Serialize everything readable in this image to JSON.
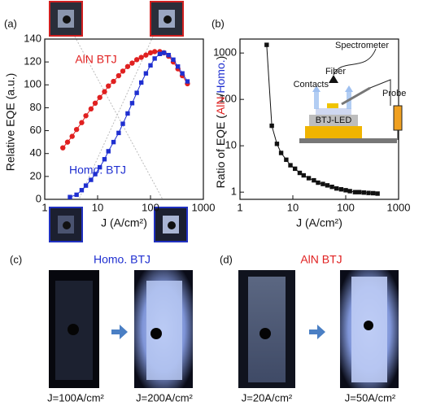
{
  "chart_data": [
    {
      "type": "line",
      "label": "(a)",
      "xlabel": "J (A/cm²)",
      "ylabel": "Relative EQE (a.u.)",
      "xscale": "log",
      "xlim": [
        1,
        1000
      ],
      "xticks": [
        1,
        10,
        100,
        1000
      ],
      "ylim": [
        0,
        140
      ],
      "yticks": [
        0,
        20,
        40,
        60,
        80,
        100,
        120,
        140
      ],
      "series": [
        {
          "name": "AlN BTJ",
          "color": "#e02020",
          "marker": "circle",
          "x": [
            2.2,
            2.7,
            3.3,
            4,
            5,
            6,
            7.5,
            9,
            11,
            13.5,
            16,
            20,
            25,
            30,
            37,
            45,
            55,
            67,
            82,
            100,
            120,
            150,
            180,
            220,
            270,
            330,
            400,
            500
          ],
          "values": [
            45,
            50,
            55,
            61,
            67,
            73,
            79,
            84,
            89,
            94,
            99,
            103,
            108,
            112,
            116,
            119,
            122,
            124,
            126,
            128,
            129,
            129,
            128,
            125,
            120,
            114,
            108,
            101
          ]
        },
        {
          "name": "Homo. BTJ",
          "color": "#1f2fd0",
          "marker": "square",
          "x": [
            3,
            4,
            5,
            6,
            7.5,
            9,
            11,
            13.5,
            16,
            20,
            25,
            30,
            37,
            45,
            55,
            67,
            82,
            100,
            120,
            150,
            180,
            220,
            270,
            330,
            400,
            500
          ],
          "values": [
            2,
            4,
            8,
            12,
            17,
            22,
            28,
            35,
            42,
            50,
            58,
            66,
            75,
            84,
            93,
            102,
            110,
            117,
            123,
            127,
            128,
            126,
            122,
            116,
            110,
            103
          ]
        }
      ]
    },
    {
      "type": "line",
      "label": "(b)",
      "xlabel": "J (A/cm²)",
      "ylabel_parts": [
        "Ratio of EQE (",
        "AlN",
        "/",
        "Homo.",
        ")"
      ],
      "ylabel_colors": [
        "#111111",
        "#e02020",
        "#111111",
        "#1f2fd0",
        "#111111"
      ],
      "xscale": "log",
      "xlim": [
        1,
        1000
      ],
      "xticks": [
        1,
        10,
        100,
        1000
      ],
      "yscale": "log",
      "ylim": [
        0.7,
        2000
      ],
      "yticks": [
        1,
        10,
        100,
        1000
      ],
      "color": "#111111",
      "marker": "square",
      "x": [
        3.2,
        4,
        5,
        6,
        7.5,
        9,
        11,
        13.5,
        16,
        20,
        25,
        30,
        37,
        45,
        55,
        67,
        82,
        100,
        120,
        150,
        180,
        220,
        270,
        330,
        400
      ],
      "values": [
        1500,
        27,
        11,
        7,
        5,
        3.8,
        3.2,
        2.6,
        2.3,
        2,
        1.8,
        1.6,
        1.5,
        1.4,
        1.3,
        1.2,
        1.15,
        1.1,
        1.05,
        1.0,
        1.0,
        0.98,
        0.96,
        0.95,
        0.93
      ]
    }
  ],
  "inset": {
    "spectrometer": "Spectrometer",
    "fiber": "Fiber",
    "contacts": "Contacts",
    "probe": "Probe",
    "device": "BTJ-LED"
  },
  "panels": [
    {
      "label": "(c)",
      "title": "Homo. BTJ",
      "captions": [
        "J=100A/cm²",
        "J=200A/cm²"
      ]
    },
    {
      "label": "(d)",
      "title": "AlN BTJ",
      "captions": [
        "J=20A/cm²",
        "J=50A/cm²"
      ]
    }
  ]
}
